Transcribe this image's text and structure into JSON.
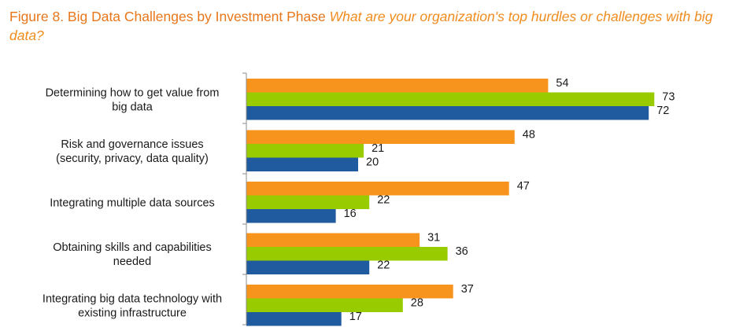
{
  "header": {
    "figure_title": "Figure 8. Big Data Challenges by Investment Phase",
    "question": "What are your organization's top hurdles or challenges with big data?"
  },
  "chart_data": {
    "type": "bar",
    "orientation": "horizontal",
    "title": "Figure 8. Big Data Challenges by Investment Phase",
    "subtitle": "What are your organization's top hurdles or challenges with big data?",
    "categories": [
      [
        "Determining how to get value from",
        "big data"
      ],
      [
        "Risk and governance issues",
        "(security, privacy, data quality)"
      ],
      [
        "Integrating multiple data sources"
      ],
      [
        "Obtaining skills and capabilities",
        "needed"
      ],
      [
        "Integrating big data technology with",
        "existing infrastructure"
      ]
    ],
    "series": [
      {
        "color": "#f7941d",
        "values": [
          54,
          48,
          47,
          31,
          37
        ]
      },
      {
        "color": "#99cc00",
        "values": [
          73,
          21,
          22,
          36,
          28
        ]
      },
      {
        "color": "#1f5b9e",
        "values": [
          72,
          20,
          16,
          22,
          17
        ]
      }
    ],
    "xlim": [
      0,
      80
    ],
    "grid": false,
    "legend": "none",
    "data_labels": true
  }
}
